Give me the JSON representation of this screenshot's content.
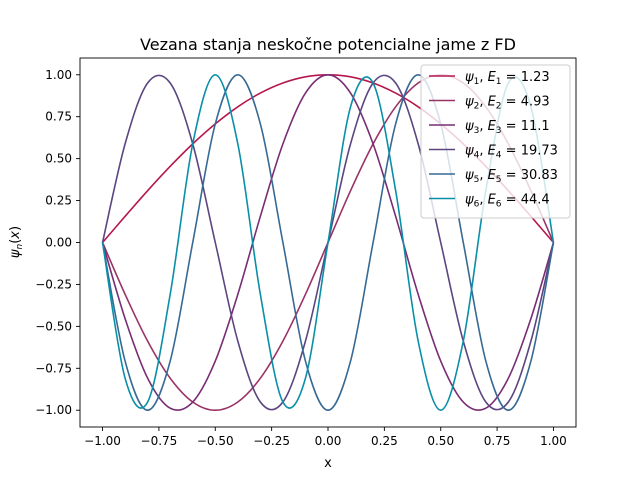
{
  "chart_data": {
    "type": "line",
    "title": "Vezana stanja neskočne potencialne jame z FD",
    "xlabel": "x",
    "ylabel": "ψn(x)",
    "xlim": [
      -1.1,
      1.1
    ],
    "ylim": [
      -1.1,
      1.1
    ],
    "xticks": [
      -1.0,
      -0.75,
      -0.5,
      -0.25,
      0.0,
      0.25,
      0.5,
      0.75,
      1.0
    ],
    "xtick_labels": [
      "−1.00",
      "−0.75",
      "−0.50",
      "−0.25",
      "0.00",
      "0.25",
      "0.50",
      "0.75",
      "1.00"
    ],
    "yticks": [
      -1.0,
      -0.75,
      -0.5,
      -0.25,
      0.0,
      0.25,
      0.5,
      0.75,
      1.0
    ],
    "ytick_labels": [
      "−1.00",
      "−0.75",
      "−0.50",
      "−0.25",
      "0.00",
      "0.25",
      "0.50",
      "0.75",
      "1.00"
    ],
    "grid": false,
    "legend_position": "upper-right",
    "x": [
      -1.0,
      -0.9,
      -0.8,
      -0.7,
      -0.6,
      -0.5,
      -0.4,
      -0.3,
      -0.2,
      -0.1,
      0.0,
      0.1,
      0.2,
      0.3,
      0.4,
      0.5,
      0.6,
      0.7,
      0.8,
      0.9,
      1.0
    ],
    "series": [
      {
        "label": "ψ",
        "sub": "1",
        "energy_label": "E",
        "energy_sub": "1",
        "energy": "1.23",
        "color": "#b5174f",
        "values": [
          0.0,
          0.156,
          0.309,
          0.454,
          0.588,
          0.707,
          0.809,
          0.891,
          0.951,
          0.988,
          1.0,
          0.988,
          0.951,
          0.891,
          0.809,
          0.707,
          0.588,
          0.454,
          0.309,
          0.156,
          0.0
        ]
      },
      {
        "label": "ψ",
        "sub": "2",
        "energy_label": "E",
        "energy_sub": "2",
        "energy": "4.93",
        "color": "#993366",
        "values": [
          0.0,
          -0.309,
          -0.588,
          -0.809,
          -0.951,
          -1.0,
          -0.951,
          -0.809,
          -0.588,
          -0.309,
          0.0,
          0.309,
          0.588,
          0.809,
          0.951,
          1.0,
          0.951,
          0.809,
          0.588,
          0.309,
          0.0
        ]
      },
      {
        "label": "ψ",
        "sub": "3",
        "energy_label": "E",
        "energy_sub": "3",
        "energy": "11.1",
        "color": "#782d74",
        "values": [
          0.0,
          -0.454,
          -0.809,
          -0.988,
          -0.951,
          -0.707,
          -0.309,
          0.156,
          0.588,
          0.891,
          1.0,
          0.891,
          0.588,
          0.156,
          -0.309,
          -0.707,
          -0.951,
          -0.988,
          -0.809,
          -0.454,
          0.0
        ]
      },
      {
        "label": "ψ",
        "sub": "4",
        "energy_label": "E",
        "energy_sub": "4",
        "energy": "19.73",
        "color": "#5b4680",
        "values": [
          0.0,
          0.588,
          0.951,
          0.951,
          0.588,
          0.0,
          -0.588,
          -0.951,
          -0.951,
          -0.588,
          0.0,
          0.588,
          0.951,
          0.951,
          0.588,
          0.0,
          -0.588,
          -0.951,
          -0.951,
          -0.588,
          0.0
        ]
      },
      {
        "label": "ψ",
        "sub": "5",
        "energy_label": "E",
        "energy_sub": "5",
        "energy": "30.83",
        "color": "#366a95",
        "values": [
          0.0,
          -0.707,
          -1.0,
          -0.707,
          0.0,
          0.707,
          1.0,
          0.707,
          0.0,
          -0.707,
          -1.0,
          -0.707,
          0.0,
          0.707,
          1.0,
          0.707,
          0.0,
          -0.707,
          -1.0,
          -0.707,
          0.0
        ]
      },
      {
        "label": "ψ",
        "sub": "6",
        "energy_label": "E",
        "energy_sub": "6",
        "energy": "44.4",
        "color": "#0a8fa8",
        "values": [
          0.0,
          -0.809,
          -0.951,
          -0.309,
          0.588,
          1.0,
          0.588,
          -0.309,
          -0.951,
          -0.809,
          0.0,
          0.809,
          0.951,
          0.309,
          -0.588,
          -1.0,
          -0.588,
          0.309,
          0.951,
          0.809,
          0.0
        ]
      }
    ]
  }
}
